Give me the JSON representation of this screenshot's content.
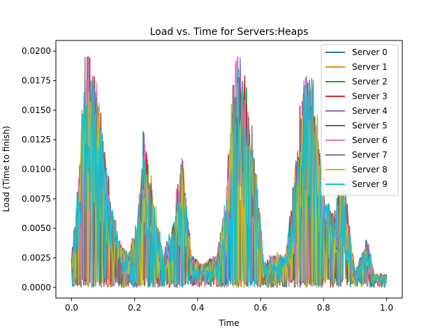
{
  "chart_data": {
    "type": "line",
    "title": "Load vs. Time for Servers:Heaps",
    "xlabel": "Time",
    "ylabel": "Load (Time to finish)",
    "xlim": [
      -0.05,
      1.05
    ],
    "ylim": [
      -0.0009,
      0.0209
    ],
    "xticks": [
      0.0,
      0.2,
      0.4,
      0.6,
      0.8,
      1.0
    ],
    "xtick_labels": [
      "0.0",
      "0.2",
      "0.4",
      "0.6",
      "0.8",
      "1.0"
    ],
    "yticks": [
      0.0,
      0.0025,
      0.005,
      0.0075,
      0.01,
      0.0125,
      0.015,
      0.0175,
      0.02
    ],
    "ytick_labels": [
      "0.0000",
      "0.0025",
      "0.0050",
      "0.0075",
      "0.0100",
      "0.0125",
      "0.0150",
      "0.0175",
      "0.0200"
    ],
    "grid": false,
    "legend_position": "top-right",
    "envelope": {
      "x": [
        0.0,
        0.02,
        0.035,
        0.05,
        0.065,
        0.09,
        0.12,
        0.15,
        0.18,
        0.21,
        0.23,
        0.26,
        0.29,
        0.32,
        0.35,
        0.38,
        0.42,
        0.46,
        0.49,
        0.52,
        0.55,
        0.58,
        0.61,
        0.64,
        0.68,
        0.71,
        0.74,
        0.77,
        0.8,
        0.83,
        0.86,
        0.88,
        0.9,
        0.92,
        0.94,
        0.96,
        0.98,
        1.0
      ],
      "y": [
        0.002,
        0.006,
        0.011,
        0.0155,
        0.0135,
        0.011,
        0.006,
        0.003,
        0.002,
        0.004,
        0.0095,
        0.0055,
        0.002,
        0.0035,
        0.0085,
        0.002,
        0.0015,
        0.002,
        0.0055,
        0.0145,
        0.0125,
        0.0085,
        0.0015,
        0.002,
        0.002,
        0.007,
        0.0135,
        0.012,
        0.0055,
        0.0045,
        0.007,
        0.004,
        0.001,
        0.002,
        0.003,
        0.0008,
        0.0008,
        0.0008
      ]
    },
    "series": [
      {
        "name": "Server 0",
        "color": "#1f77b4"
      },
      {
        "name": "Server 1",
        "color": "#ff7f0e"
      },
      {
        "name": "Server 2",
        "color": "#2ca02c"
      },
      {
        "name": "Server 3",
        "color": "#d62728"
      },
      {
        "name": "Server 4",
        "color": "#9467bd"
      },
      {
        "name": "Server 5",
        "color": "#8c564b"
      },
      {
        "name": "Server 6",
        "color": "#e377c2"
      },
      {
        "name": "Server 7",
        "color": "#7f7f7f"
      },
      {
        "name": "Server 8",
        "color": "#bcbd22"
      },
      {
        "name": "Server 9",
        "color": "#17becf"
      }
    ]
  }
}
